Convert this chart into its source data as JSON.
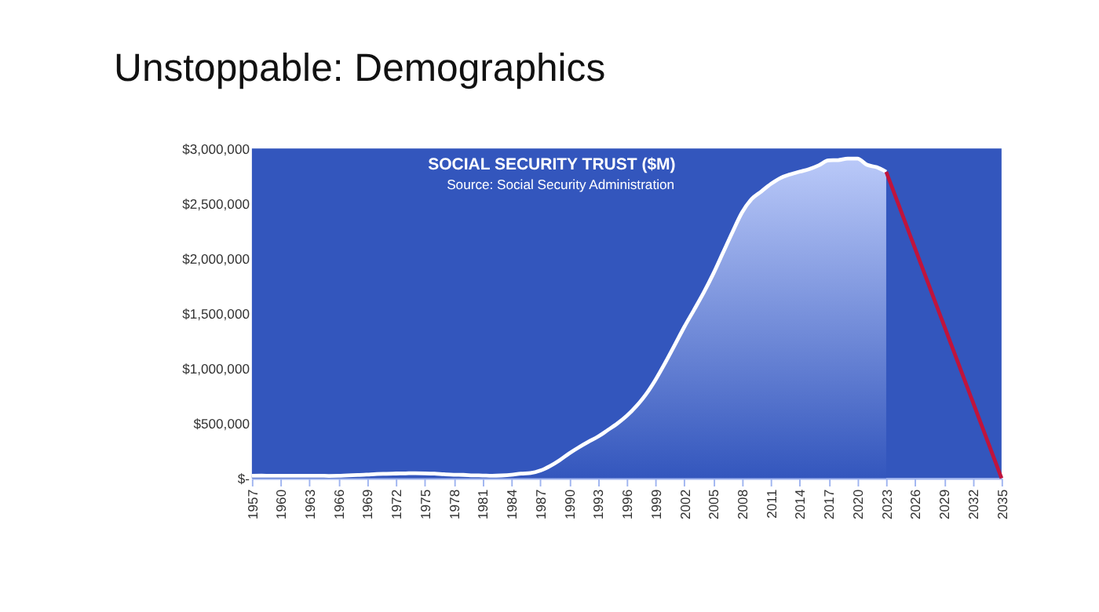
{
  "chart_data": {
    "type": "area",
    "title": "Unstoppable: Demographics",
    "subtitle": "SOCIAL SECURITY TRUST ($M)",
    "annotations": [
      "Source: Social Security Administration"
    ],
    "xlim": [
      1957,
      2035
    ],
    "xticks": [
      1957,
      1960,
      1963,
      1966,
      1969,
      1972,
      1975,
      1978,
      1981,
      1984,
      1987,
      1990,
      1993,
      1996,
      1999,
      2002,
      2005,
      2008,
      2011,
      2014,
      2017,
      2020,
      2023,
      2026,
      2029,
      2032,
      2035
    ],
    "ylim": [
      0,
      3000000
    ],
    "yticks": [
      {
        "value": 0,
        "label": "$-"
      },
      {
        "value": 500000,
        "label": "$500,000"
      },
      {
        "value": 1000000,
        "label": "$1,000,000"
      },
      {
        "value": 1500000,
        "label": "$1,500,000"
      },
      {
        "value": 2000000,
        "label": "$2,000,000"
      },
      {
        "value": 2500000,
        "label": "$2,500,000"
      },
      {
        "value": 3000000,
        "label": "$3,000,000"
      }
    ],
    "grid": false,
    "series": [
      {
        "color": "#ffffff",
        "x": [
          1957,
          1958,
          1959,
          1960,
          1961,
          1962,
          1963,
          1964,
          1965,
          1966,
          1967,
          1968,
          1969,
          1970,
          1971,
          1972,
          1973,
          1974,
          1975,
          1976,
          1977,
          1978,
          1979,
          1980,
          1981,
          1982,
          1983,
          1984,
          1985,
          1986,
          1987,
          1988,
          1989,
          1990,
          1991,
          1992,
          1993,
          1994,
          1995,
          1996,
          1997,
          1998,
          1999,
          2000,
          2001,
          2002,
          2003,
          2004,
          2005,
          2006,
          2007,
          2008,
          2009,
          2010,
          2011,
          2012,
          2013,
          2014,
          2015,
          2016,
          2017,
          2018,
          2019,
          2020,
          2021,
          2022,
          2023
        ],
        "values": [
          22000,
          23000,
          22000,
          22600,
          22200,
          21700,
          22200,
          22200,
          21200,
          22300,
          26300,
          28700,
          33000,
          38100,
          40400,
          42800,
          44400,
          45900,
          44300,
          41100,
          35900,
          31700,
          30300,
          26500,
          24500,
          22100,
          24900,
          31100,
          42200,
          46900,
          68800,
          109800,
          162900,
          225300,
          280700,
          331500,
          378300,
          436400,
          496100,
          566900,
          655500,
          762500,
          896100,
          1049400,
          1212500,
          1378000,
          1530800,
          1687000,
          1858700,
          2048100,
          2238500,
          2418700,
          2540300,
          2609000,
          2677900,
          2732300,
          2764200,
          2789500,
          2812500,
          2847700,
          2891800,
          2894900,
          2908300,
          2908000,
          2852000,
          2830000,
          2788000
        ]
      },
      {
        "type": "line",
        "color": "#c0143c",
        "x": [
          2023,
          2035
        ],
        "values": [
          2788000,
          0
        ]
      }
    ]
  }
}
